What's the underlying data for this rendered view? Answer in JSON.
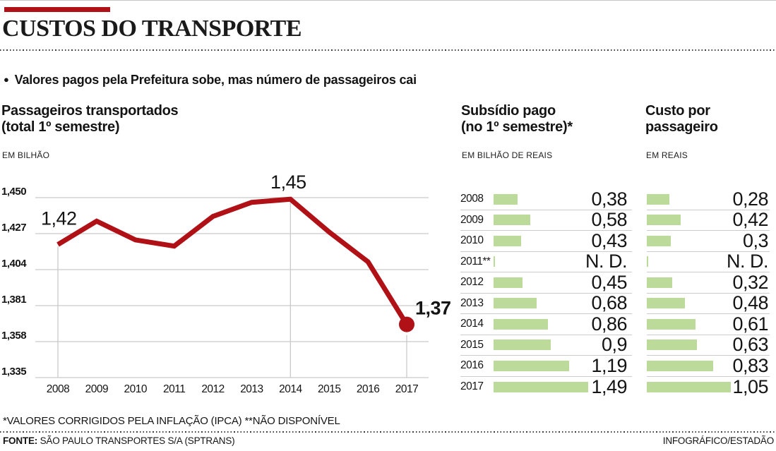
{
  "page": {
    "title": "CUSTOS DO TRANSPORTE",
    "lead_bullet": "●",
    "lead": "Valores pagos pela Prefeitura sobe, mas número de passageiros cai",
    "footnote": "*VALORES CORRIGIDOS PELA INFLAÇÃO (IPCA) **NÃO DISPONÍVEL",
    "source_label": "FONTE:",
    "source": " SÃO PAULO TRANSPORTES S/A (SPTRANS)",
    "credit": "INFOGRÁFICO/ESTADÃO"
  },
  "colors": {
    "accent_red": "#b01116",
    "bar_green": "#bcdb9b",
    "grid_gray": "#c9c9c9",
    "text": "#141414"
  },
  "chart_data": [
    {
      "id": "passageiros",
      "type": "line",
      "title": "Passageiros transportados",
      "title_line2": "(total 1º semestre)",
      "unit": "EM BILHÃO",
      "xlabel": "",
      "ylabel": "EM BILHÃO",
      "x": [
        "2008",
        "2009",
        "2010",
        "2011",
        "2012",
        "2013",
        "2014",
        "2015",
        "2016",
        "2017"
      ],
      "values": [
        1.42,
        1.435,
        1.423,
        1.419,
        1.438,
        1.447,
        1.449,
        1.428,
        1.409,
        1.369
      ],
      "ylim": [
        1.335,
        1.45
      ],
      "yticks": [
        "1,450",
        "1,427",
        "1,404",
        "1,381",
        "1,358",
        "1,335"
      ],
      "ytick_values": [
        1.45,
        1.427,
        1.404,
        1.381,
        1.358,
        1.335
      ],
      "grid": true,
      "line_color": "#b01116",
      "end_dot_year": "2017",
      "annotations": [
        {
          "year": "2008",
          "label": "1,42",
          "placement": "above-left"
        },
        {
          "year": "2014",
          "label": "1,45",
          "placement": "above"
        },
        {
          "year": "2017",
          "label": "1,37",
          "placement": "right",
          "bold": true
        }
      ],
      "vertical_guides": [
        {
          "year": "2008",
          "start": "point"
        },
        {
          "year": "2014",
          "start": "top"
        },
        {
          "year": "2017",
          "start": "below_dot"
        }
      ]
    },
    {
      "id": "subsidio",
      "type": "bar",
      "title": "Subsídio pago",
      "title_line2": "(no 1º semestre)*",
      "unit": "EM BILHÃO DE REAIS",
      "categories": [
        "2008",
        "2009",
        "2010",
        "2011**",
        "2012",
        "2013",
        "2014",
        "2015",
        "2016",
        "2017"
      ],
      "values": [
        0.38,
        0.58,
        0.43,
        null,
        0.45,
        0.68,
        0.86,
        0.9,
        1.19,
        1.49
      ],
      "labels": [
        "0,38",
        "0,58",
        "0,43",
        "N. D.",
        "0,45",
        "0,68",
        "0,86",
        "0,9",
        "1,19",
        "1,49"
      ],
      "bar_color": "#bcdb9b"
    },
    {
      "id": "custo_por_passageiro",
      "type": "bar",
      "title": "Custo por",
      "title_line2": "passageiro",
      "unit": "EM REAIS",
      "categories": [
        "2008",
        "2009",
        "2010",
        "2011**",
        "2012",
        "2013",
        "2014",
        "2015",
        "2016",
        "2017"
      ],
      "values": [
        0.28,
        0.42,
        0.3,
        null,
        0.32,
        0.48,
        0.61,
        0.63,
        0.83,
        1.05
      ],
      "labels": [
        "0,28",
        "0,42",
        "0,3",
        "N. D.",
        "0,32",
        "0,48",
        "0,61",
        "0,63",
        "0,83",
        "1,05"
      ],
      "bar_color": "#bcdb9b"
    }
  ]
}
